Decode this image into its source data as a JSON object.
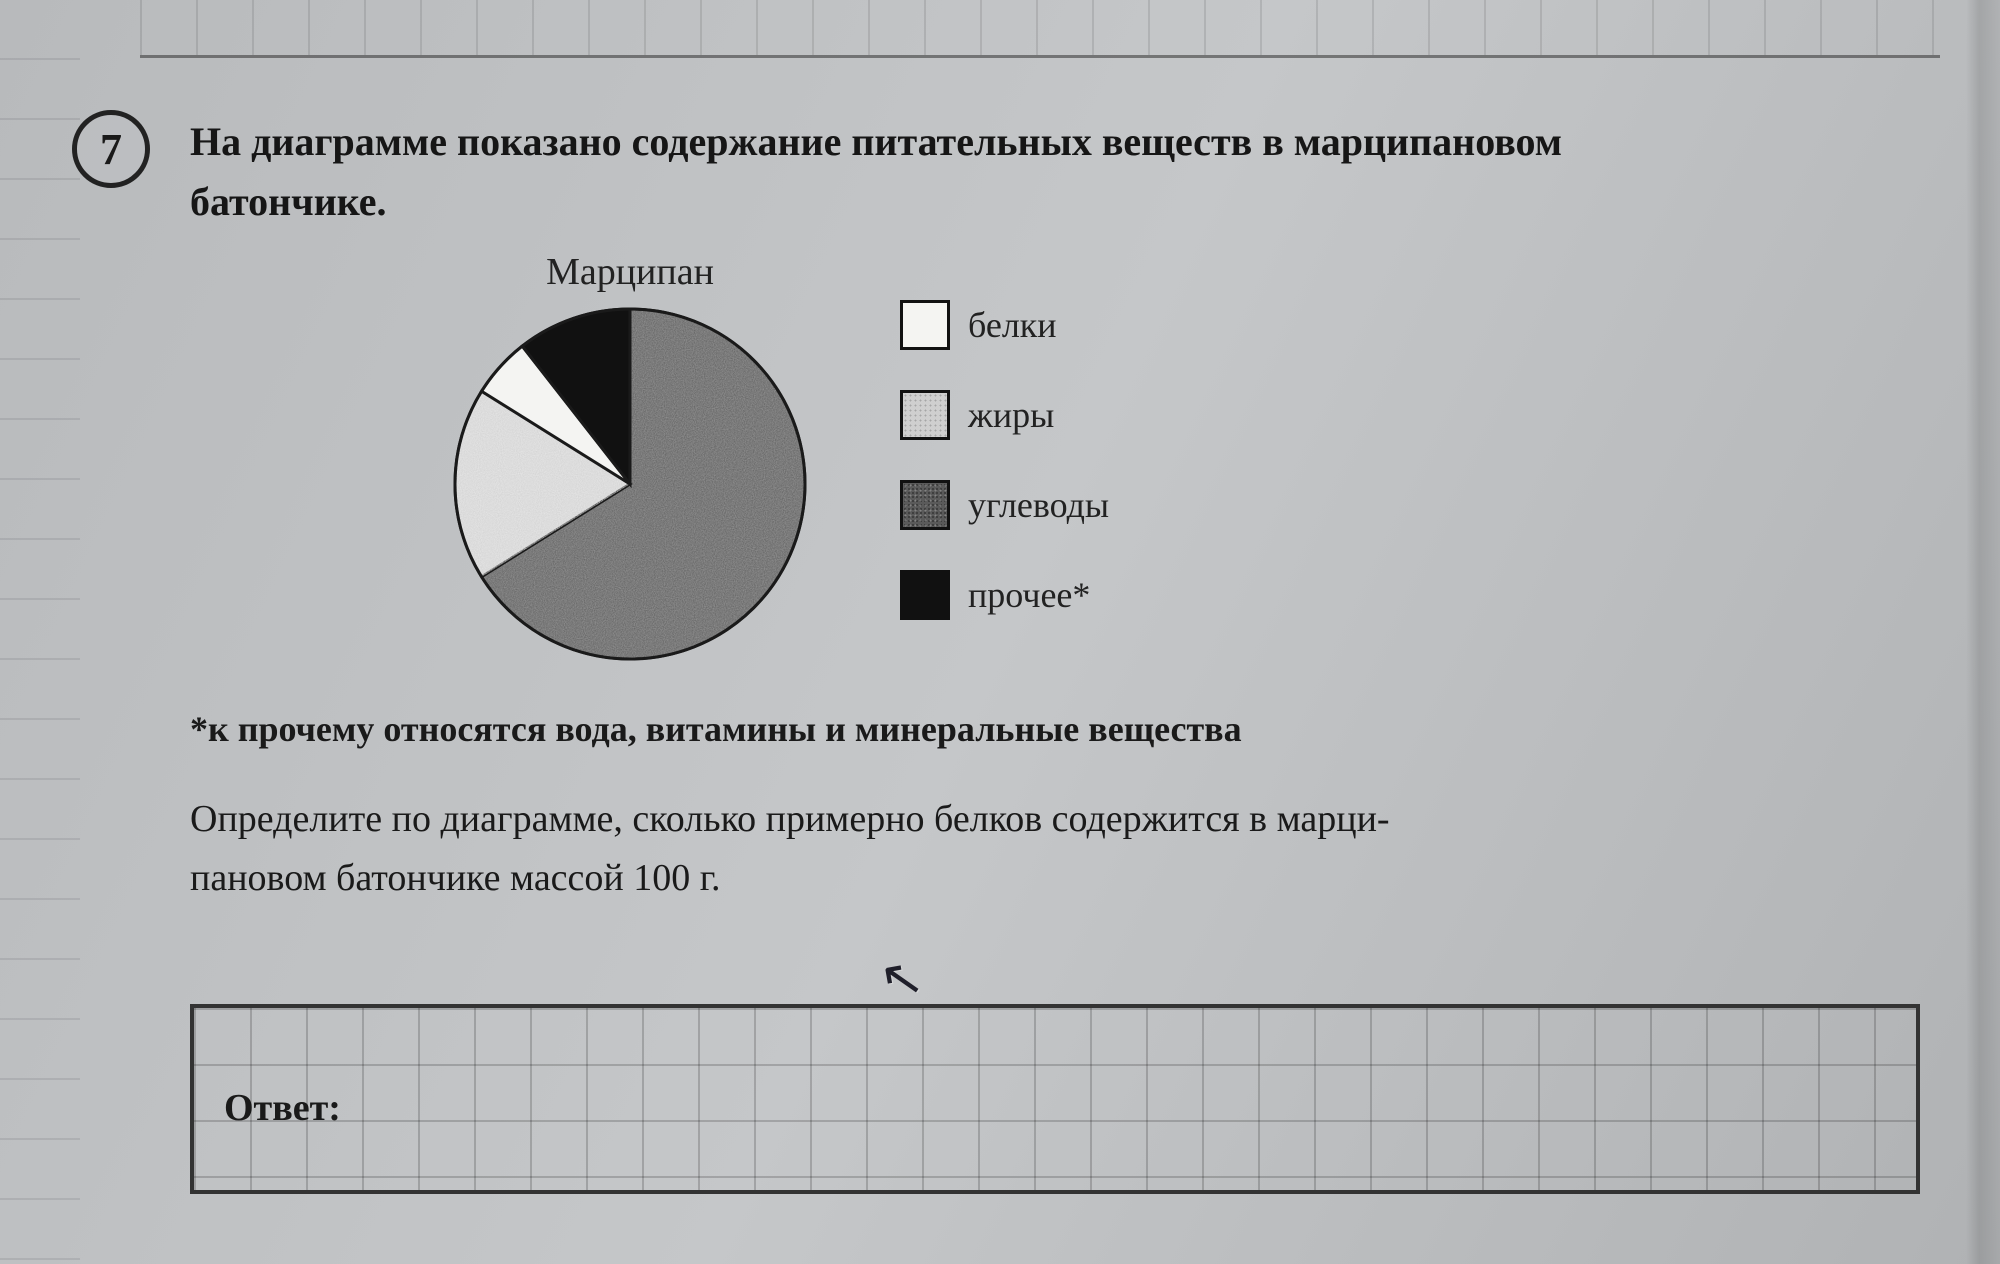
{
  "question_number": "7",
  "question_text_line1": "На диаграмме показано содержание питательных веществ в марципановом",
  "question_text_line2": "батончике.",
  "chart": {
    "title": "Марципан",
    "type": "pie",
    "radius": 175,
    "stroke": "#1a1a1a",
    "stroke_width": 3,
    "slices": [
      {
        "key": "carbs",
        "label": "углеводы",
        "start_deg": 0,
        "end_deg": 238,
        "fill": "#5a5a5a",
        "pattern": "noise-dark"
      },
      {
        "key": "fats",
        "label": "жиры",
        "start_deg": 238,
        "end_deg": 302,
        "fill": "#cfcfcf",
        "pattern": "noise-light"
      },
      {
        "key": "protein",
        "label": "белки",
        "start_deg": 302,
        "end_deg": 322,
        "fill": "#f4f4f2",
        "pattern": "none"
      },
      {
        "key": "other",
        "label": "прочее*",
        "start_deg": 322,
        "end_deg": 360,
        "fill": "#111111",
        "pattern": "none"
      }
    ],
    "legend": [
      {
        "label": "белки",
        "fill": "#f4f4f2",
        "pattern": "none"
      },
      {
        "label": "жиры",
        "fill": "#cfcfcf",
        "pattern": "noise-light"
      },
      {
        "label": "углеводы",
        "fill": "#5a5a5a",
        "pattern": "noise-dark"
      },
      {
        "label": "прочее*",
        "fill": "#111111",
        "pattern": "none"
      }
    ]
  },
  "footnote": "*к прочему относятся вода, витамины и минеральные вещества",
  "task_line1": "Определите по диаграмме, сколько примерно белков содержится в марци-",
  "task_line2": "пановом батончике массой 100 г.",
  "answer_label": "Ответ:",
  "colors": {
    "page_bg": "#bfc1c3",
    "ink": "#1a1a1a",
    "grid": "rgba(0,0,0,0.18)"
  },
  "typography": {
    "body_pt": 28,
    "title_pt": 28,
    "number_pt": 32,
    "family": "serif",
    "weight_body": "bold"
  }
}
